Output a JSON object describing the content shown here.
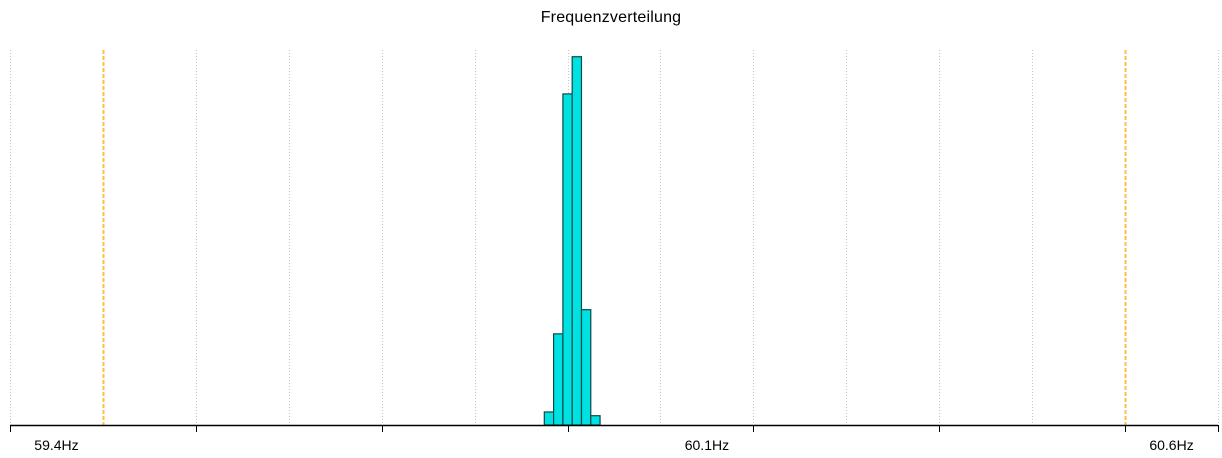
{
  "chart_data": {
    "type": "bar",
    "title": "Frequenzverteilung",
    "xlabel": "",
    "ylabel": "",
    "x_range": [
      59.35,
      60.65
    ],
    "y_range": [
      0,
      100
    ],
    "tick_values": [
      59.4,
      59.5,
      59.6,
      59.7,
      59.8,
      59.9,
      60.0,
      60.1,
      60.2,
      60.3,
      60.4,
      60.5,
      60.6
    ],
    "x_tick_labels": [
      {
        "value": 59.4,
        "label": "59.4Hz"
      },
      {
        "value": 60.1,
        "label": "60.1Hz"
      },
      {
        "value": 60.6,
        "label": "60.6Hz"
      }
    ],
    "grid_lines_x": [
      59.35,
      59.45,
      59.55,
      59.65,
      59.75,
      59.85,
      59.95,
      60.05,
      60.15,
      60.25,
      60.35,
      60.45,
      60.55,
      60.65
    ],
    "limit_lines_x": [
      59.45,
      60.55
    ],
    "bin_width": 0.01,
    "bins": [
      {
        "x": 59.93,
        "value": 3.5
      },
      {
        "x": 59.94,
        "value": 24.5
      },
      {
        "x": 59.95,
        "value": 89
      },
      {
        "x": 59.96,
        "value": 99
      },
      {
        "x": 59.97,
        "value": 31
      },
      {
        "x": 59.98,
        "value": 2.5
      }
    ],
    "grid": true,
    "legend": "none"
  },
  "colors": {
    "bar_fill": "#00E1E1",
    "bar_stroke": "#0A4A4A",
    "limit_line": "#FFC040",
    "grid_line": "#C8C8C8",
    "axis": "#000000"
  }
}
